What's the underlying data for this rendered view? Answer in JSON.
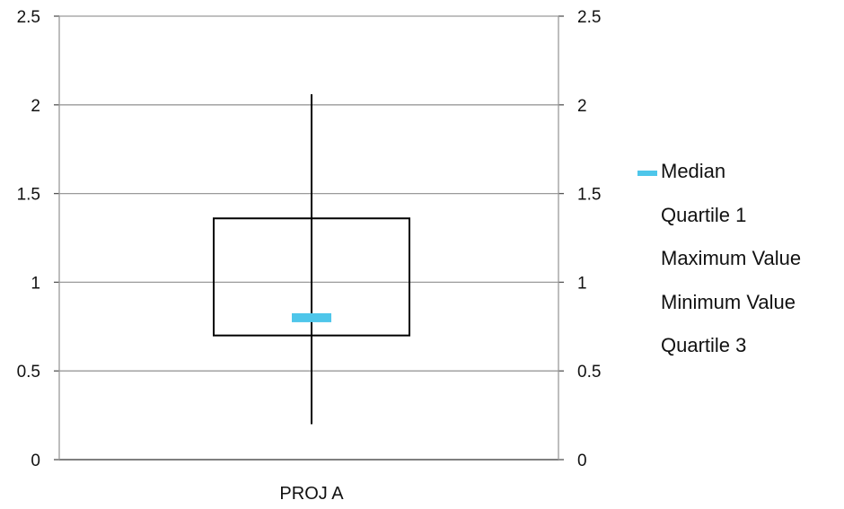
{
  "chart_data": {
    "type": "boxplot",
    "categories": [
      "PROJ A"
    ],
    "boxes": [
      {
        "category": "PROJ A",
        "min": 0.2,
        "q1": 0.7,
        "median": 0.8,
        "q3": 1.36,
        "max": 2.06
      }
    ],
    "ylim": [
      0,
      2.5
    ],
    "y_ticks": [
      "0",
      "0.5",
      "1",
      "1.5",
      "2",
      "2.5"
    ],
    "secondary_axis_ticks": [
      "0",
      "0.5",
      "1",
      "1.5",
      "2",
      "2.5"
    ],
    "grid": true,
    "legend_position": "right",
    "legend": [
      {
        "name": "Median",
        "color": "#4ec6ea",
        "swatch": true
      },
      {
        "name": "Quartile 1",
        "swatch": false
      },
      {
        "name": "Maximum Value",
        "swatch": false
      },
      {
        "name": "Minimum Value",
        "swatch": false
      },
      {
        "name": "Quartile 3",
        "swatch": false
      }
    ],
    "colors": {
      "median": "#4ec6ea",
      "box": "#000000",
      "grid": "#9a9a9a"
    }
  }
}
